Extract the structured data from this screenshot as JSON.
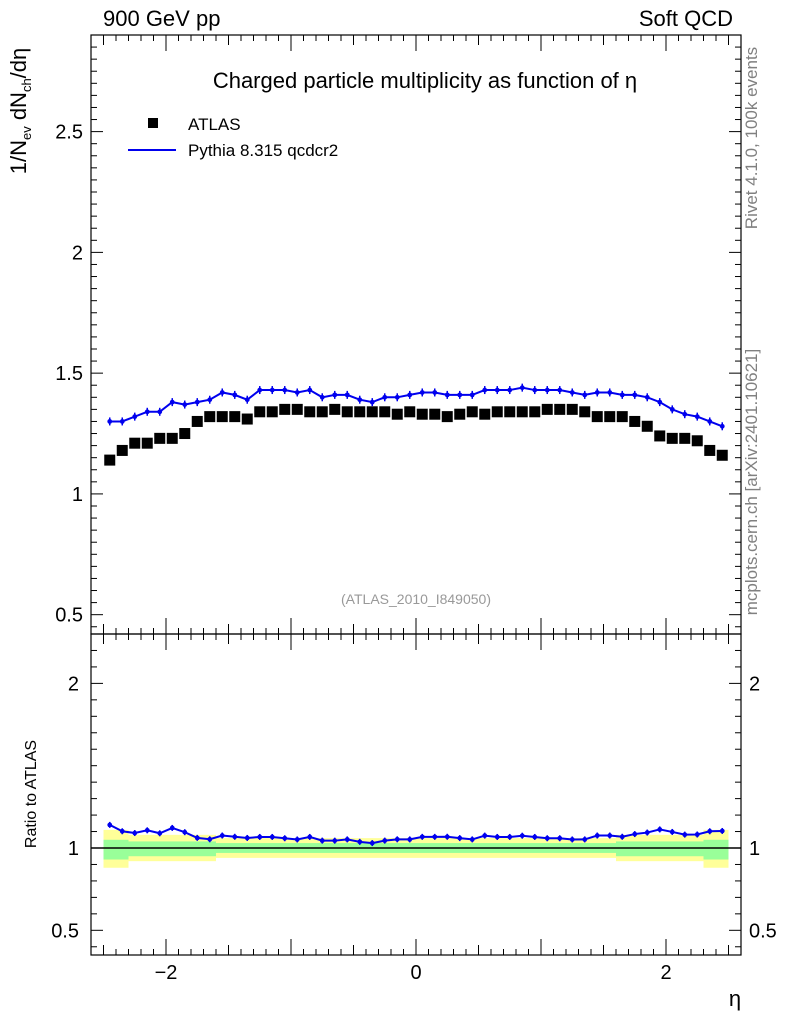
{
  "header": {
    "left": "900 GeV pp",
    "right": "Soft QCD"
  },
  "side": {
    "rivet": "Rivet 4.1.0,  100k events",
    "mcplots": "mcplots.cern.ch [arXiv:2401.10621]"
  },
  "chart_data": {
    "type": "line",
    "title": "Charged particle multiplicity as function of η",
    "analysis_id": "(ATLAS_2010_I849050)",
    "xlabel": "η",
    "ylabel": "1/N_ev dN_ch/dη",
    "ratio_ylabel": "Ratio to ATLAS",
    "xlim": [
      -2.6,
      2.6
    ],
    "ylim": [
      0.42,
      2.9
    ],
    "ratio_ylim": [
      0.35,
      2.3
    ],
    "xticks": [
      "−2",
      "0",
      "2"
    ],
    "yticks": [
      "0.5",
      "1",
      "1.5",
      "2",
      "2.5"
    ],
    "ratio_yticks": [
      "0.5",
      "1",
      "2"
    ],
    "legend": [
      {
        "name": "ATLAS",
        "marker": "square",
        "color": "#000000"
      },
      {
        "name": "Pythia 8.315 qcdcr2",
        "marker": "line",
        "color": "#0000ee"
      }
    ],
    "x": [
      -2.45,
      -2.35,
      -2.25,
      -2.15,
      -2.05,
      -1.95,
      -1.85,
      -1.75,
      -1.65,
      -1.55,
      -1.45,
      -1.35,
      -1.25,
      -1.15,
      -1.05,
      -0.95,
      -0.85,
      -0.75,
      -0.65,
      -0.55,
      -0.45,
      -0.35,
      -0.25,
      -0.15,
      -0.05,
      0.05,
      0.15,
      0.25,
      0.35,
      0.45,
      0.55,
      0.65,
      0.75,
      0.85,
      0.95,
      1.05,
      1.15,
      1.25,
      1.35,
      1.45,
      1.55,
      1.65,
      1.75,
      1.85,
      1.95,
      2.05,
      2.15,
      2.25,
      2.35,
      2.45
    ],
    "series": [
      {
        "name": "ATLAS",
        "values": [
          1.14,
          1.18,
          1.21,
          1.21,
          1.23,
          1.23,
          1.25,
          1.3,
          1.32,
          1.32,
          1.32,
          1.31,
          1.34,
          1.34,
          1.35,
          1.35,
          1.34,
          1.34,
          1.35,
          1.34,
          1.34,
          1.34,
          1.34,
          1.33,
          1.34,
          1.33,
          1.33,
          1.32,
          1.33,
          1.34,
          1.33,
          1.34,
          1.34,
          1.34,
          1.34,
          1.35,
          1.35,
          1.35,
          1.34,
          1.32,
          1.32,
          1.32,
          1.3,
          1.28,
          1.24,
          1.23,
          1.23,
          1.22,
          1.18,
          1.16
        ]
      },
      {
        "name": "Pythia 8.315 qcdcr2",
        "values": [
          1.3,
          1.3,
          1.32,
          1.34,
          1.34,
          1.38,
          1.37,
          1.38,
          1.39,
          1.42,
          1.41,
          1.39,
          1.43,
          1.43,
          1.43,
          1.42,
          1.43,
          1.4,
          1.41,
          1.41,
          1.39,
          1.38,
          1.4,
          1.4,
          1.41,
          1.42,
          1.42,
          1.41,
          1.41,
          1.41,
          1.43,
          1.43,
          1.43,
          1.44,
          1.43,
          1.43,
          1.43,
          1.42,
          1.41,
          1.42,
          1.42,
          1.41,
          1.41,
          1.4,
          1.38,
          1.35,
          1.33,
          1.32,
          1.3,
          1.28
        ]
      }
    ],
    "ratio_bands": {
      "edges_x": [
        -2.5,
        -2.3,
        -1.6,
        1.6,
        2.3,
        2.5
      ],
      "yellow": [
        [
          0.88,
          1.11
        ],
        [
          0.92,
          1.08
        ],
        [
          0.94,
          1.06
        ],
        [
          0.92,
          1.08
        ],
        [
          0.88,
          1.11
        ]
      ],
      "green": [
        [
          0.93,
          1.05
        ],
        [
          0.95,
          1.04
        ],
        [
          0.97,
          1.03
        ],
        [
          0.95,
          1.04
        ],
        [
          0.93,
          1.05
        ]
      ]
    }
  }
}
